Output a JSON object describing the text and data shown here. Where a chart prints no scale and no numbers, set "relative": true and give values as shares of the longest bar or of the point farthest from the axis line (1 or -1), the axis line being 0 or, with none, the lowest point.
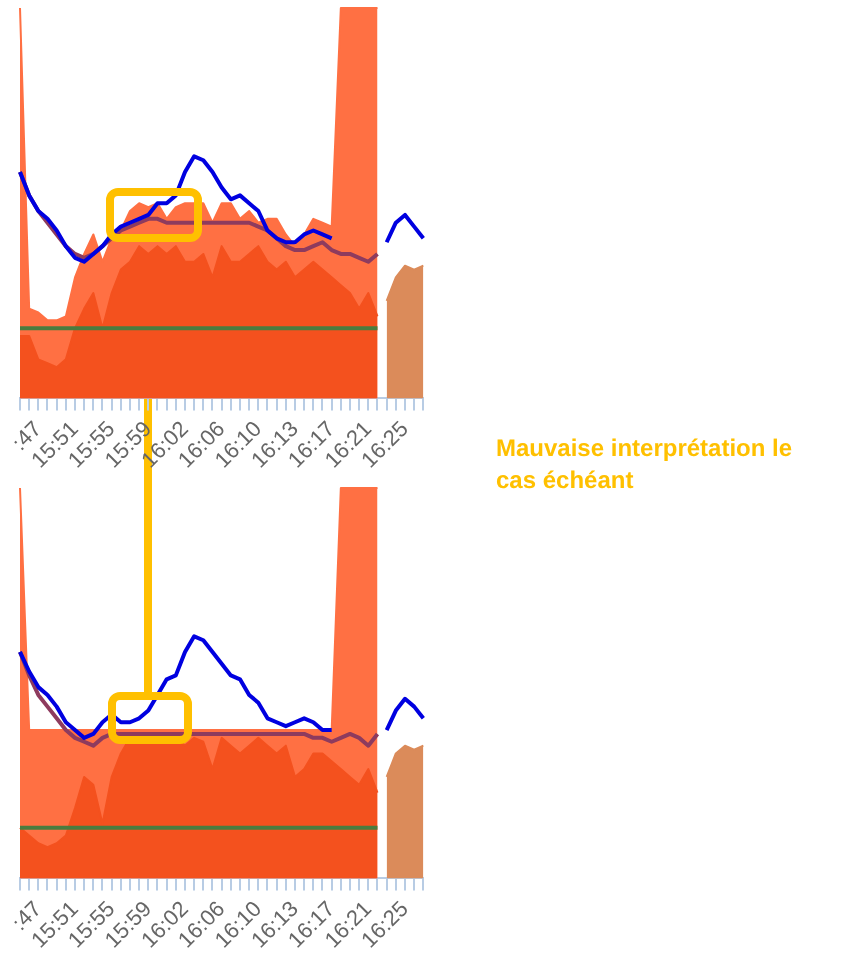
{
  "chart_data": [
    {
      "type": "area",
      "relative": true,
      "categories": [
        null,
        null,
        ":47",
        null,
        null,
        null,
        "15:51",
        null,
        null,
        null,
        "15:55",
        null,
        null,
        null,
        "15:59",
        null,
        null,
        null,
        "16:02",
        null,
        null,
        null,
        "16:06",
        null,
        null,
        null,
        "16:10",
        null,
        null,
        null,
        "16:13",
        null,
        null,
        null,
        "16:17",
        null,
        null,
        null,
        "16:21",
        null,
        null,
        null,
        "16:25",
        null,
        null
      ],
      "series": [
        {
          "type": "area",
          "color": "#ff7043",
          "values": [
            1.0,
            0.23,
            0.22,
            0.2,
            0.2,
            0.21,
            0.31,
            0.37,
            0.42,
            0.35,
            0.41,
            0.43,
            0.48,
            0.5,
            0.49,
            0.5,
            0.46,
            0.49,
            0.5,
            0.5,
            0.5,
            0.45,
            0.5,
            0.5,
            0.46,
            0.48,
            0.45,
            0.46,
            0.46,
            0.42,
            0.39,
            0.42,
            0.46,
            0.45,
            0.44,
            1.0,
            1.0,
            1.0,
            1.0,
            1.0,
            null,
            null,
            null,
            null,
            null
          ]
        },
        {
          "type": "area",
          "color": "#f4511e",
          "values": [
            0.16,
            0.16,
            0.1,
            0.09,
            0.08,
            0.1,
            0.18,
            0.23,
            0.27,
            0.18,
            0.27,
            0.33,
            0.35,
            0.39,
            0.37,
            0.39,
            0.37,
            0.39,
            0.35,
            0.35,
            0.37,
            0.31,
            0.39,
            0.35,
            0.35,
            0.37,
            0.39,
            0.35,
            0.33,
            0.35,
            0.31,
            0.33,
            0.35,
            0.33,
            0.31,
            0.29,
            0.27,
            0.23,
            0.27,
            0.21,
            null,
            null,
            null,
            null,
            null
          ]
        },
        {
          "type": "area",
          "color": "#db8b5a",
          "values": [
            null,
            null,
            null,
            null,
            null,
            null,
            null,
            null,
            null,
            null,
            null,
            null,
            null,
            null,
            null,
            null,
            null,
            null,
            null,
            null,
            null,
            null,
            null,
            null,
            null,
            null,
            null,
            null,
            null,
            null,
            null,
            null,
            null,
            null,
            null,
            null,
            null,
            null,
            null,
            null,
            0.25,
            0.31,
            0.34,
            0.33,
            0.34
          ]
        },
        {
          "type": "line",
          "color": "#4a7c3f",
          "values": [
            0.18,
            0.18,
            0.18,
            0.18,
            0.18,
            0.18,
            0.18,
            0.18,
            0.18,
            0.18,
            0.18,
            0.18,
            0.18,
            0.18,
            0.18,
            0.18,
            0.18,
            0.18,
            0.18,
            0.18,
            0.18,
            0.18,
            0.18,
            0.18,
            0.18,
            0.18,
            0.18,
            0.18,
            0.18,
            0.18,
            0.18,
            0.18,
            0.18,
            0.18,
            0.18,
            0.18,
            0.18,
            0.18,
            0.18,
            0.18,
            null,
            null,
            null,
            null,
            null
          ]
        },
        {
          "type": "line",
          "color": "#8e3b5e",
          "values": [
            0.58,
            0.52,
            0.48,
            0.45,
            0.42,
            0.39,
            0.37,
            0.36,
            0.37,
            0.39,
            0.41,
            0.43,
            0.44,
            0.45,
            0.46,
            0.46,
            0.45,
            0.45,
            0.45,
            0.45,
            0.45,
            0.45,
            0.45,
            0.45,
            0.45,
            0.45,
            0.44,
            0.43,
            0.41,
            0.39,
            0.38,
            0.38,
            0.39,
            0.4,
            0.38,
            0.37,
            0.37,
            0.36,
            0.35,
            0.37,
            null,
            null,
            null,
            null,
            null
          ]
        },
        {
          "type": "line",
          "color": "#0000e0",
          "values": [
            0.58,
            0.52,
            0.48,
            0.46,
            0.43,
            0.39,
            0.36,
            0.35,
            0.37,
            0.39,
            0.42,
            0.44,
            0.45,
            0.46,
            0.47,
            0.5,
            0.5,
            0.52,
            0.58,
            0.62,
            0.61,
            0.58,
            0.54,
            0.51,
            0.52,
            0.5,
            0.48,
            0.43,
            0.41,
            0.4,
            0.4,
            0.42,
            0.43,
            0.42,
            0.41,
            null,
            null,
            null,
            null,
            null,
            0.4,
            0.45,
            0.47,
            0.44,
            0.41
          ]
        }
      ]
    },
    {
      "type": "area",
      "relative": true,
      "categories": [
        null,
        null,
        ":47",
        null,
        null,
        null,
        "15:51",
        null,
        null,
        null,
        "15:55",
        null,
        null,
        null,
        "15:59",
        null,
        null,
        null,
        "16:02",
        null,
        null,
        null,
        "16:06",
        null,
        null,
        null,
        "16:10",
        null,
        null,
        null,
        "16:13",
        null,
        null,
        null,
        "16:17",
        null,
        null,
        null,
        "16:21",
        null,
        null,
        null,
        "16:25",
        null,
        null
      ],
      "annotations": [
        "Mauvaise interprétation le cas échéant"
      ],
      "series": [
        {
          "type": "area",
          "color": "#ff7043",
          "values": [
            1.0,
            0.38,
            0.38,
            0.38,
            0.38,
            0.38,
            0.38,
            0.38,
            0.38,
            0.38,
            0.38,
            0.38,
            0.38,
            0.38,
            0.38,
            0.38,
            0.38,
            0.38,
            0.38,
            0.38,
            0.38,
            0.38,
            0.38,
            0.38,
            0.38,
            0.38,
            0.38,
            0.38,
            0.38,
            0.38,
            0.38,
            0.38,
            0.38,
            0.38,
            0.38,
            1.0,
            1.0,
            1.0,
            1.0,
            1.0,
            null,
            null,
            null,
            null,
            null
          ]
        },
        {
          "type": "area",
          "color": "#f4511e",
          "values": [
            0.13,
            0.11,
            0.09,
            0.08,
            0.09,
            0.11,
            0.18,
            0.26,
            0.24,
            0.14,
            0.26,
            0.32,
            0.36,
            0.37,
            0.36,
            0.37,
            0.36,
            0.36,
            0.34,
            0.36,
            0.35,
            0.28,
            0.36,
            0.34,
            0.32,
            0.34,
            0.36,
            0.34,
            0.32,
            0.34,
            0.26,
            0.28,
            0.32,
            0.32,
            0.3,
            0.28,
            0.26,
            0.24,
            0.28,
            0.22,
            null,
            null,
            null,
            null,
            null
          ]
        },
        {
          "type": "area",
          "color": "#db8b5a",
          "values": [
            null,
            null,
            null,
            null,
            null,
            null,
            null,
            null,
            null,
            null,
            null,
            null,
            null,
            null,
            null,
            null,
            null,
            null,
            null,
            null,
            null,
            null,
            null,
            null,
            null,
            null,
            null,
            null,
            null,
            null,
            null,
            null,
            null,
            null,
            null,
            null,
            null,
            null,
            null,
            null,
            0.26,
            0.32,
            0.34,
            0.33,
            0.34
          ]
        },
        {
          "type": "line",
          "color": "#4a7c3f",
          "values": [
            0.13,
            0.13,
            0.13,
            0.13,
            0.13,
            0.13,
            0.13,
            0.13,
            0.13,
            0.13,
            0.13,
            0.13,
            0.13,
            0.13,
            0.13,
            0.13,
            0.13,
            0.13,
            0.13,
            0.13,
            0.13,
            0.13,
            0.13,
            0.13,
            0.13,
            0.13,
            0.13,
            0.13,
            0.13,
            0.13,
            0.13,
            0.13,
            0.13,
            0.13,
            0.13,
            0.13,
            0.13,
            0.13,
            0.13,
            0.13,
            null,
            null,
            null,
            null,
            null
          ]
        },
        {
          "type": "line",
          "color": "#8e3b5e",
          "values": [
            0.58,
            0.52,
            0.47,
            0.44,
            0.41,
            0.38,
            0.36,
            0.35,
            0.34,
            0.36,
            0.37,
            0.37,
            0.37,
            0.37,
            0.37,
            0.37,
            0.37,
            0.37,
            0.37,
            0.37,
            0.37,
            0.37,
            0.37,
            0.37,
            0.37,
            0.37,
            0.37,
            0.37,
            0.37,
            0.37,
            0.37,
            0.37,
            0.36,
            0.36,
            0.35,
            0.36,
            0.37,
            0.36,
            0.34,
            0.37,
            null,
            null,
            null,
            null,
            null
          ]
        },
        {
          "type": "line",
          "color": "#0000e0",
          "values": [
            0.58,
            0.53,
            0.49,
            0.47,
            0.44,
            0.4,
            0.38,
            0.36,
            0.37,
            0.4,
            0.42,
            0.4,
            0.4,
            0.41,
            0.43,
            0.47,
            0.51,
            0.52,
            0.58,
            0.62,
            0.61,
            0.58,
            0.55,
            0.52,
            0.51,
            0.47,
            0.45,
            0.41,
            0.4,
            0.39,
            0.4,
            0.41,
            0.4,
            0.38,
            0.38,
            null,
            null,
            null,
            null,
            null,
            0.38,
            0.43,
            0.46,
            0.44,
            0.41
          ]
        }
      ]
    }
  ]
}
